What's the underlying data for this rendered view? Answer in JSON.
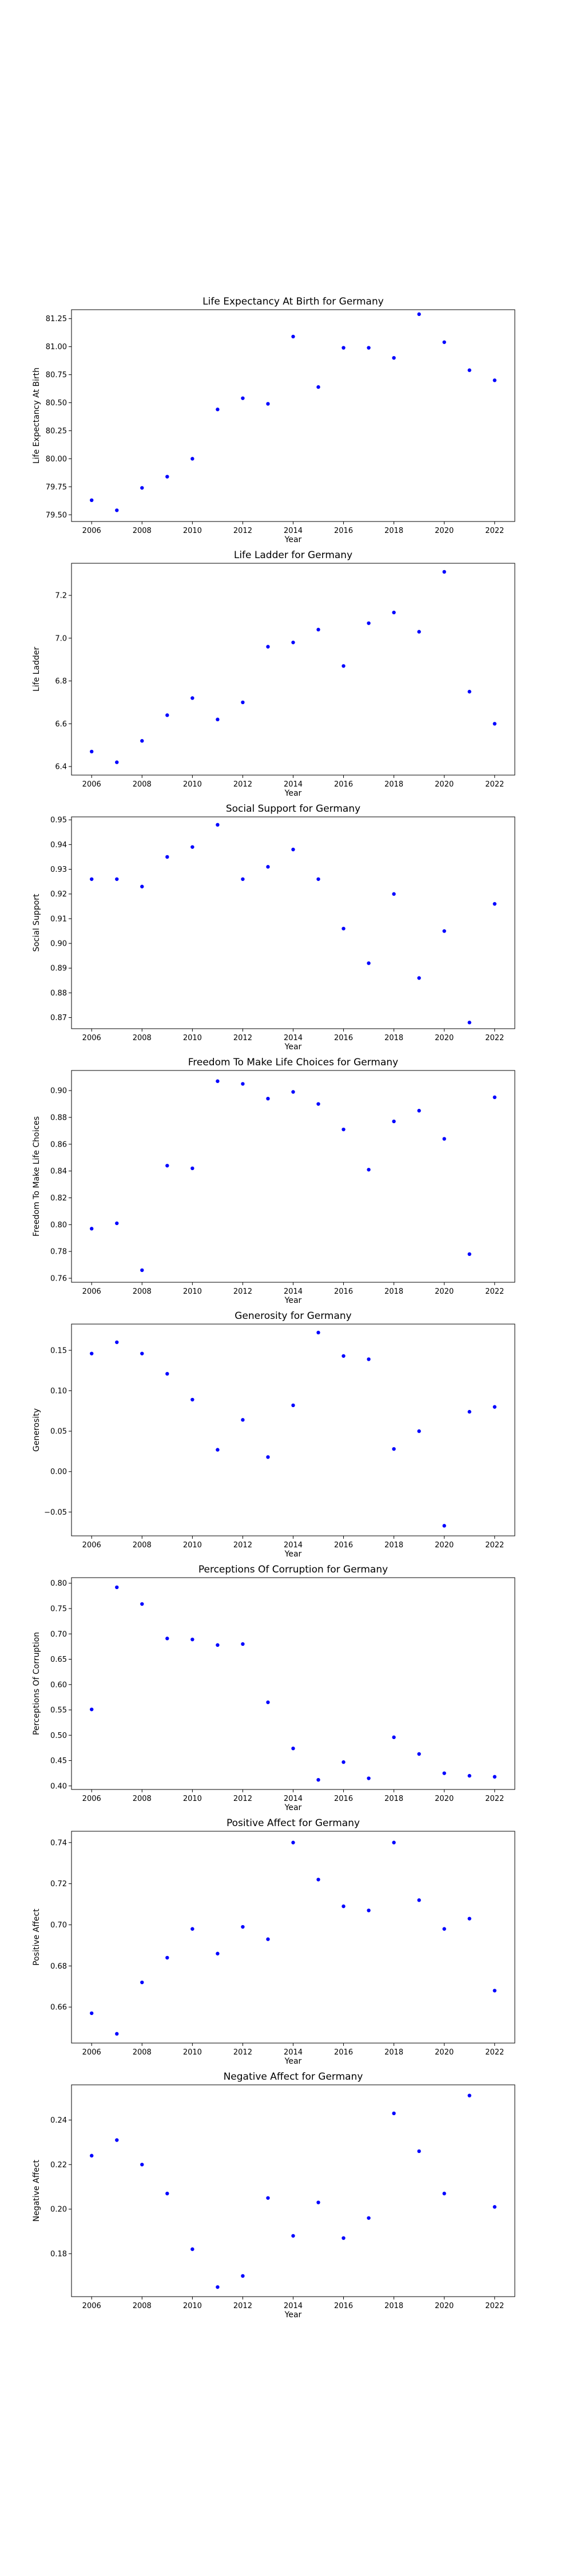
{
  "chart_data": [
    {
      "type": "scatter",
      "title": "Life Expectancy At Birth for Germany",
      "xlabel": "Year",
      "ylabel": "Life Expectancy At Birth",
      "color": "#0000ff",
      "grid": false,
      "xlim": [
        2005.2,
        2022.8
      ],
      "ylim": [
        79.44,
        81.33
      ],
      "xticks": [
        2006,
        2008,
        2010,
        2012,
        2014,
        2016,
        2018,
        2020,
        2022
      ],
      "yticks": [
        "79.50",
        "79.75",
        "80.00",
        "80.25",
        "80.50",
        "80.75",
        "81.00",
        "81.25"
      ],
      "x": [
        2006,
        2007,
        2008,
        2009,
        2010,
        2011,
        2012,
        2013,
        2014,
        2015,
        2016,
        2017,
        2018,
        2019,
        2020,
        2021,
        2022
      ],
      "y": [
        79.63,
        79.54,
        79.74,
        79.84,
        80.0,
        80.44,
        80.54,
        80.49,
        81.09,
        80.64,
        80.99,
        80.99,
        80.9,
        81.29,
        81.04,
        80.79,
        80.7
      ]
    },
    {
      "type": "scatter",
      "title": "Life Ladder for Germany",
      "xlabel": "Year",
      "ylabel": "Life Ladder",
      "color": "#0000ff",
      "grid": false,
      "xlim": [
        2005.2,
        2022.8
      ],
      "ylim": [
        6.36,
        7.35
      ],
      "xticks": [
        2006,
        2008,
        2010,
        2012,
        2014,
        2016,
        2018,
        2020,
        2022
      ],
      "yticks": [
        "6.4",
        "6.6",
        "6.8",
        "7.0",
        "7.2"
      ],
      "x": [
        2006,
        2007,
        2008,
        2009,
        2010,
        2011,
        2012,
        2013,
        2014,
        2015,
        2016,
        2017,
        2018,
        2019,
        2020,
        2021,
        2022
      ],
      "y": [
        6.47,
        6.42,
        6.52,
        6.64,
        6.72,
        6.62,
        6.7,
        6.96,
        6.98,
        7.04,
        6.87,
        7.07,
        7.12,
        7.03,
        7.31,
        6.75,
        6.6
      ]
    },
    {
      "type": "scatter",
      "title": "Social Support for Germany",
      "xlabel": "Year",
      "ylabel": "Social Support",
      "color": "#0000ff",
      "grid": false,
      "xlim": [
        2005.2,
        2022.8
      ],
      "ylim": [
        0.8655,
        0.9512
      ],
      "xticks": [
        2006,
        2008,
        2010,
        2012,
        2014,
        2016,
        2018,
        2020,
        2022
      ],
      "yticks": [
        "0.87",
        "0.88",
        "0.89",
        "0.90",
        "0.91",
        "0.92",
        "0.93",
        "0.94",
        "0.95"
      ],
      "x": [
        2006,
        2007,
        2008,
        2009,
        2010,
        2011,
        2012,
        2013,
        2014,
        2015,
        2016,
        2017,
        2018,
        2019,
        2020,
        2021,
        2022
      ],
      "y": [
        0.926,
        0.926,
        0.923,
        0.935,
        0.939,
        0.948,
        0.926,
        0.931,
        0.938,
        0.926,
        0.906,
        0.892,
        0.92,
        0.886,
        0.905,
        0.868,
        0.916
      ]
    },
    {
      "type": "scatter",
      "title": "Freedom To Make Life Choices for Germany",
      "xlabel": "Year",
      "ylabel": "Freedom To Make Life Choices",
      "color": "#0000ff",
      "grid": false,
      "xlim": [
        2005.2,
        2022.8
      ],
      "ylim": [
        0.757,
        0.915
      ],
      "xticks": [
        2006,
        2008,
        2010,
        2012,
        2014,
        2016,
        2018,
        2020,
        2022
      ],
      "yticks": [
        "0.76",
        "0.78",
        "0.80",
        "0.82",
        "0.84",
        "0.86",
        "0.88",
        "0.90"
      ],
      "x": [
        2006,
        2007,
        2008,
        2009,
        2010,
        2011,
        2012,
        2013,
        2014,
        2015,
        2016,
        2017,
        2018,
        2019,
        2020,
        2021,
        2022
      ],
      "y": [
        0.797,
        0.801,
        0.766,
        0.844,
        0.842,
        0.907,
        0.905,
        0.894,
        0.899,
        0.89,
        0.871,
        0.841,
        0.877,
        0.885,
        0.864,
        0.778,
        0.895
      ]
    },
    {
      "type": "scatter",
      "title": "Generosity for Germany",
      "xlabel": "Year",
      "ylabel": "Generosity",
      "color": "#0000ff",
      "grid": false,
      "xlim": [
        2005.2,
        2022.8
      ],
      "ylim": [
        -0.0795,
        0.1825
      ],
      "xticks": [
        2006,
        2008,
        2010,
        2012,
        2014,
        2016,
        2018,
        2020,
        2022
      ],
      "yticks": [
        "−0.05",
        "0.00",
        "0.05",
        "0.10",
        "0.15"
      ],
      "x": [
        2006,
        2007,
        2008,
        2009,
        2010,
        2011,
        2012,
        2013,
        2014,
        2015,
        2016,
        2017,
        2018,
        2019,
        2020,
        2021,
        2022
      ],
      "y": [
        0.146,
        0.16,
        0.146,
        0.121,
        0.089,
        0.027,
        0.064,
        0.018,
        0.082,
        0.172,
        0.143,
        0.139,
        0.028,
        0.05,
        -0.067,
        0.074,
        0.08
      ]
    },
    {
      "type": "scatter",
      "title": "Perceptions Of Corruption for Germany",
      "xlabel": "Year",
      "ylabel": "Perceptions Of Corruption",
      "color": "#0000ff",
      "grid": false,
      "xlim": [
        2005.2,
        2022.8
      ],
      "ylim": [
        0.393,
        0.811
      ],
      "xticks": [
        2006,
        2008,
        2010,
        2012,
        2014,
        2016,
        2018,
        2020,
        2022
      ],
      "yticks": [
        "0.40",
        "0.45",
        "0.50",
        "0.55",
        "0.60",
        "0.65",
        "0.70",
        "0.75",
        "0.80"
      ],
      "x": [
        2006,
        2007,
        2008,
        2009,
        2010,
        2011,
        2012,
        2013,
        2014,
        2015,
        2016,
        2017,
        2018,
        2019,
        2020,
        2021,
        2022
      ],
      "y": [
        0.551,
        0.792,
        0.759,
        0.691,
        0.689,
        0.678,
        0.68,
        0.565,
        0.474,
        0.412,
        0.447,
        0.415,
        0.496,
        0.463,
        0.425,
        0.42,
        0.418
      ]
    },
    {
      "type": "scatter",
      "title": "Positive Affect for Germany",
      "xlabel": "Year",
      "ylabel": "Positive Affect",
      "color": "#0000ff",
      "grid": false,
      "xlim": [
        2005.2,
        2022.8
      ],
      "ylim": [
        0.6425,
        0.7455
      ],
      "xticks": [
        2006,
        2008,
        2010,
        2012,
        2014,
        2016,
        2018,
        2020,
        2022
      ],
      "yticks": [
        "0.66",
        "0.68",
        "0.70",
        "0.72",
        "0.74"
      ],
      "x": [
        2006,
        2007,
        2008,
        2009,
        2010,
        2011,
        2012,
        2013,
        2014,
        2015,
        2016,
        2017,
        2018,
        2019,
        2020,
        2021,
        2022
      ],
      "y": [
        0.657,
        0.647,
        0.672,
        0.684,
        0.698,
        0.686,
        0.699,
        0.693,
        0.74,
        0.722,
        0.709,
        0.707,
        0.74,
        0.712,
        0.698,
        0.703,
        0.668
      ]
    },
    {
      "type": "scatter",
      "title": "Negative Affect for Germany",
      "xlabel": "Year",
      "ylabel": "Negative Affect",
      "color": "#0000ff",
      "grid": false,
      "xlim": [
        2005.2,
        2022.8
      ],
      "ylim": [
        0.1607,
        0.2558
      ],
      "xticks": [
        2006,
        2008,
        2010,
        2012,
        2014,
        2016,
        2018,
        2020,
        2022
      ],
      "yticks": [
        "0.18",
        "0.20",
        "0.22",
        "0.24"
      ],
      "x": [
        2006,
        2007,
        2008,
        2009,
        2010,
        2011,
        2012,
        2013,
        2014,
        2015,
        2016,
        2017,
        2018,
        2019,
        2020,
        2021,
        2022
      ],
      "y": [
        0.224,
        0.231,
        0.22,
        0.207,
        0.182,
        0.165,
        0.17,
        0.205,
        0.188,
        0.203,
        0.187,
        0.196,
        0.243,
        0.226,
        0.207,
        0.251,
        0.201
      ]
    }
  ]
}
